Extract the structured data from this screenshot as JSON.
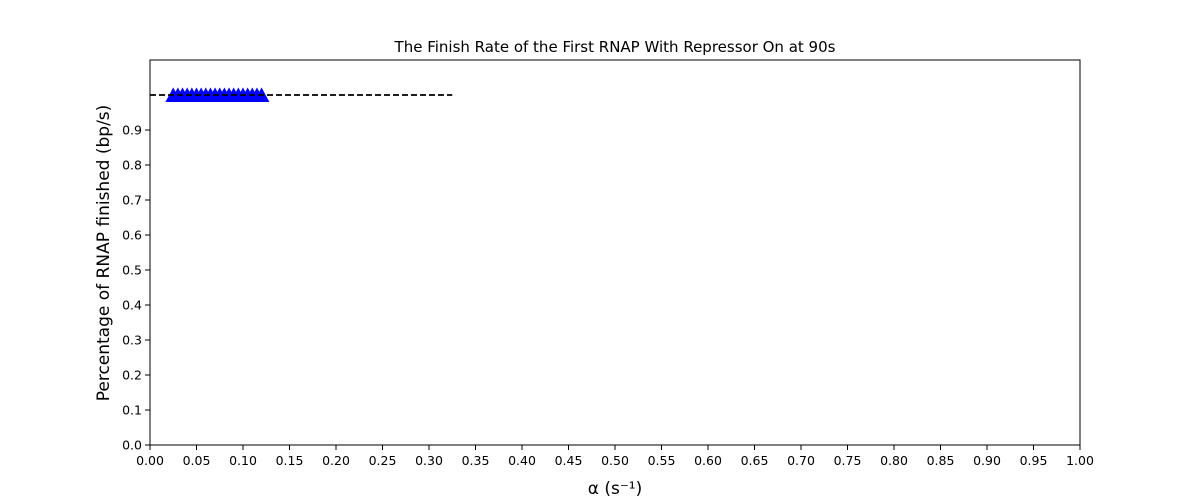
{
  "chart_data": {
    "type": "scatter",
    "title": "The Finish Rate of the First RNAP With Repressor On at 90s",
    "xlabel": "α (s⁻¹)",
    "ylabel": "Percentage of RNAP finished (bp/s)",
    "xlim": [
      0.0,
      1.0
    ],
    "ylim": [
      0.0,
      1.1
    ],
    "x_ticks": [
      "0.00",
      "0.05",
      "0.10",
      "0.15",
      "0.20",
      "0.25",
      "0.30",
      "0.35",
      "0.40",
      "0.45",
      "0.50",
      "0.55",
      "0.60",
      "0.65",
      "0.70",
      "0.75",
      "0.80",
      "0.85",
      "0.90",
      "0.95",
      "1.00"
    ],
    "y_ticks": [
      "0.0",
      "0.1",
      "0.2",
      "0.3",
      "0.4",
      "0.5",
      "0.6",
      "0.7",
      "0.8",
      "0.9"
    ],
    "grid": false,
    "reference_line": {
      "y": 1.0,
      "x_range": [
        0.0,
        0.325
      ],
      "style": "dashed",
      "color": "#000000"
    },
    "series": [
      {
        "marker": "triangle-up",
        "color": "#0000ff",
        "x": [
          0.025,
          0.03,
          0.035,
          0.04,
          0.045,
          0.05,
          0.055,
          0.06,
          0.065,
          0.07,
          0.075,
          0.08,
          0.085,
          0.09,
          0.095,
          0.1,
          0.105,
          0.11,
          0.115,
          0.12
        ],
        "y": [
          1.0,
          1.0,
          1.0,
          1.0,
          1.0,
          1.0,
          1.0,
          1.0,
          1.0,
          1.0,
          1.0,
          1.0,
          1.0,
          1.0,
          1.0,
          1.0,
          1.0,
          1.0,
          1.0,
          1.0
        ]
      }
    ]
  }
}
